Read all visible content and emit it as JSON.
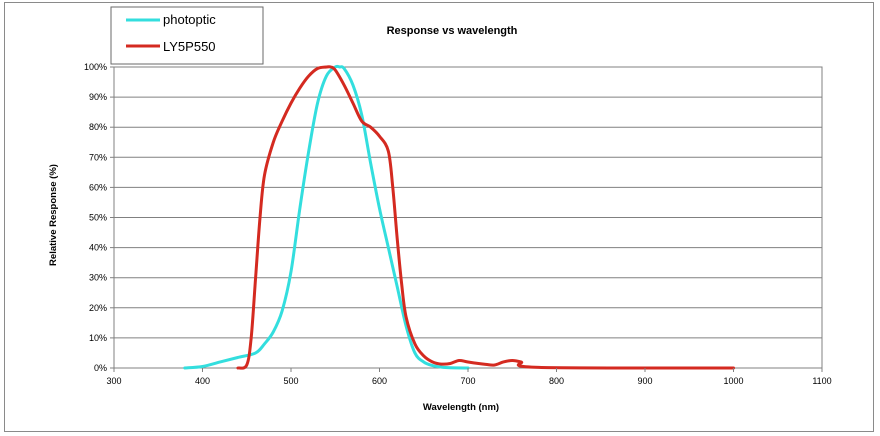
{
  "chart_data": {
    "type": "line",
    "title": "Response vs wavelength",
    "xlabel": "Wavelength (nm)",
    "ylabel": "Relative Response (%)",
    "xlim": [
      300,
      1100
    ],
    "ylim": [
      0,
      100
    ],
    "x_ticks": [
      300,
      400,
      500,
      600,
      700,
      800,
      900,
      1000,
      1100
    ],
    "y_ticks": [
      0,
      10,
      20,
      30,
      40,
      50,
      60,
      70,
      80,
      90,
      100
    ],
    "y_tick_suffix": "%",
    "grid": "horizontal",
    "legend_position": "top-left",
    "series": [
      {
        "name": "photoptic",
        "color": "#33dede",
        "x": [
          380,
          400,
          420,
          440,
          460,
          470,
          480,
          490,
          500,
          510,
          520,
          530,
          540,
          550,
          555,
          560,
          570,
          580,
          590,
          600,
          610,
          620,
          630,
          640,
          650,
          660,
          670,
          680,
          700
        ],
        "y": [
          0,
          0.5,
          2,
          3.5,
          5,
          8,
          12,
          19,
          32,
          53,
          72,
          88,
          97,
          100,
          100,
          99.5,
          94,
          84,
          68,
          53,
          40,
          27,
          14,
          5,
          2,
          0.8,
          0.3,
          0.1,
          0
        ]
      },
      {
        "name": "LY5P550",
        "color": "#d42a20",
        "x": [
          440,
          450,
          455,
          460,
          465,
          470,
          480,
          490,
          500,
          510,
          520,
          530,
          540,
          545,
          550,
          560,
          570,
          580,
          590,
          600,
          610,
          615,
          620,
          625,
          630,
          640,
          650,
          660,
          670,
          680,
          690,
          700,
          720,
          730,
          740,
          750,
          760,
          780,
          1000
        ],
        "y": [
          0,
          1,
          10,
          30,
          50,
          64,
          75,
          82,
          88,
          93,
          97,
          99.5,
          100,
          100,
          99,
          94,
          88,
          82,
          80,
          77,
          72,
          60,
          43,
          28,
          17,
          8,
          4,
          2,
          1.3,
          1.5,
          2.5,
          2,
          1.2,
          1,
          2,
          2.5,
          2,
          0.2,
          0
        ]
      }
    ]
  }
}
